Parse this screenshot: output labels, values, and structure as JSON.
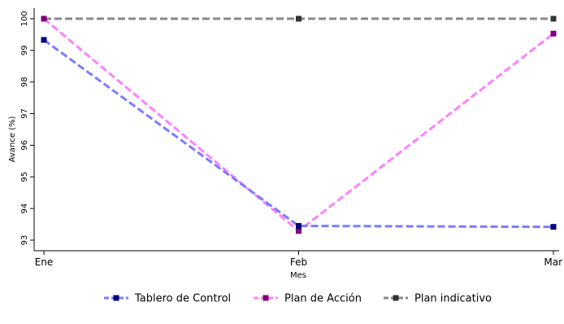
{
  "chart_data": {
    "type": "line",
    "categories": [
      "Ene",
      "Feb",
      "Mar"
    ],
    "xlabel": "Mes",
    "ylabel": "Avance (%)",
    "ylim": [
      92.85,
      100.1
    ],
    "yticks": [
      93,
      94,
      95,
      96,
      97,
      98,
      99,
      100
    ],
    "grid": false,
    "legend_position": "bottom",
    "series": [
      {
        "name": "Tablero de Control",
        "values": [
          99.33,
          93.45,
          93.42
        ],
        "color": "#7b7bff",
        "marker_color": "#000080"
      },
      {
        "name": "Plan de Acción",
        "values": [
          100.0,
          93.29,
          99.53
        ],
        "color": "#ff80ff",
        "marker_color": "#800080"
      },
      {
        "name": "Plan indicativo",
        "values": [
          100.0,
          100.0,
          100.0
        ],
        "color": "#888888",
        "marker_color": "#333333"
      }
    ]
  }
}
